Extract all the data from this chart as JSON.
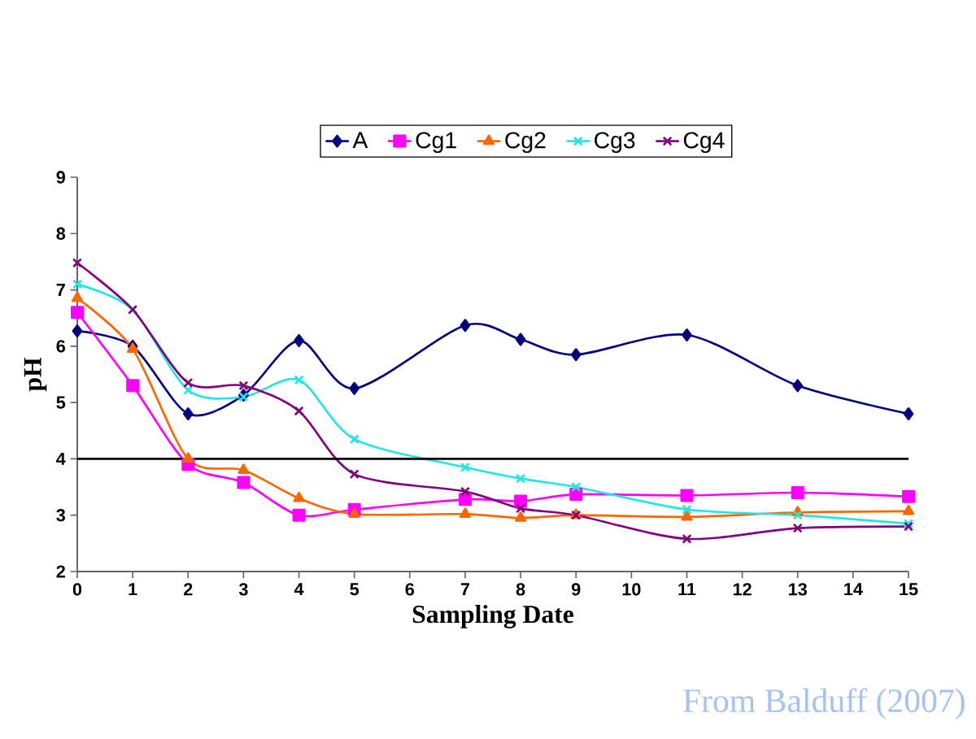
{
  "chart_data": {
    "type": "line",
    "xlabel": "Sampling Date",
    "ylabel": "pH",
    "x": [
      0,
      1,
      2,
      3,
      4,
      5,
      7,
      8,
      9,
      11,
      13,
      15
    ],
    "xlim": [
      0,
      15
    ],
    "xticks": [
      0,
      1,
      2,
      3,
      4,
      5,
      6,
      7,
      8,
      9,
      10,
      11,
      12,
      13,
      14,
      15
    ],
    "ylim": [
      2,
      9
    ],
    "yticks": [
      2,
      3,
      4,
      5,
      6,
      7,
      8,
      9
    ],
    "grid": false,
    "legend": "top",
    "line_style": "solid",
    "series": [
      {
        "name": "A",
        "color": "#000080",
        "marker": "diamond",
        "values": [
          6.27,
          6.0,
          4.8,
          5.13,
          6.1,
          5.25,
          6.37,
          6.12,
          5.85,
          6.2,
          5.3,
          4.8
        ]
      },
      {
        "name": "Cg1",
        "color": "#ff00ff",
        "marker": "square",
        "values": [
          6.6,
          5.3,
          3.9,
          3.58,
          3.0,
          3.1,
          3.28,
          3.25,
          3.37,
          3.35,
          3.4,
          3.33
        ]
      },
      {
        "name": "Cg2",
        "color": "#ff6600",
        "marker": "triangle",
        "values": [
          6.85,
          5.95,
          4.0,
          3.8,
          3.3,
          3.02,
          3.02,
          2.95,
          3.0,
          2.97,
          3.05,
          3.07
        ]
      },
      {
        "name": "Cg3",
        "color": "#22e5e5",
        "marker": "cross",
        "values": [
          7.1,
          6.65,
          5.22,
          5.1,
          5.4,
          4.35,
          3.85,
          3.65,
          3.5,
          3.1,
          3.0,
          2.85
        ]
      },
      {
        "name": "Cg4",
        "color": "#800080",
        "marker": "cross",
        "values": [
          7.48,
          6.65,
          5.35,
          5.3,
          4.85,
          3.73,
          3.42,
          3.12,
          3.0,
          2.58,
          2.77,
          2.8
        ]
      }
    ],
    "ref_lines": [
      {
        "axis": "y",
        "value": 4,
        "color": "#000000"
      }
    ],
    "annotations": [
      "From Balduff (2007)"
    ]
  }
}
